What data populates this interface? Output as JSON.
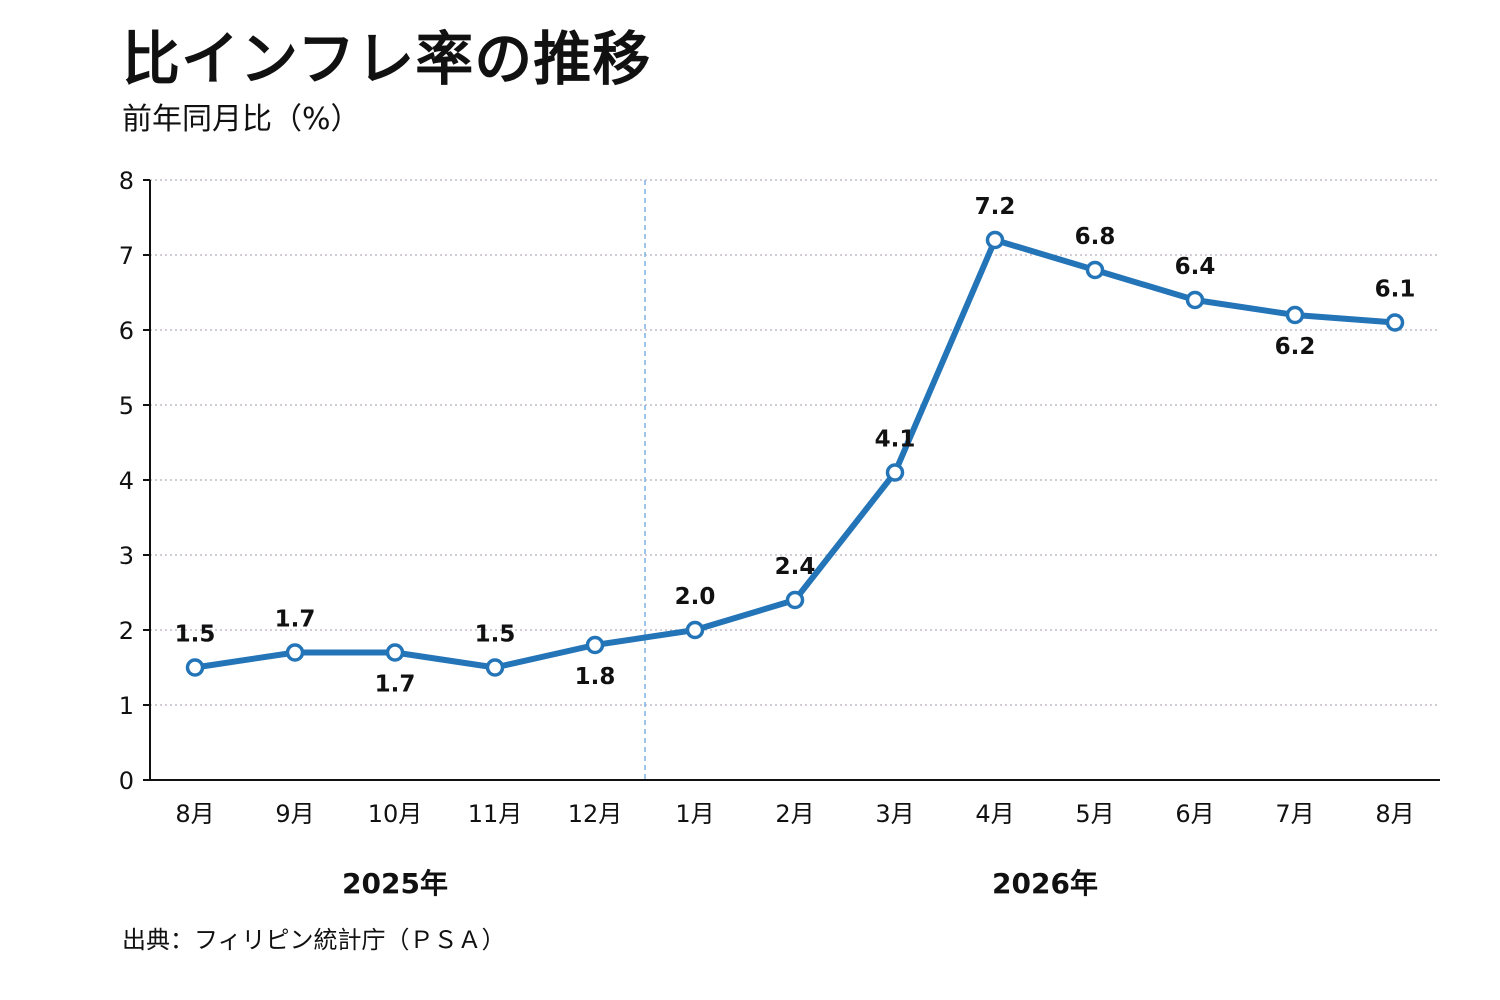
{
  "chart_data": {
    "type": "line",
    "title": "比インフレ率の推移",
    "subtitle": "前年同月比（%）",
    "source": "出典：フィリピン統計庁（ＰＳＡ）",
    "categories": [
      "8月",
      "9月",
      "10月",
      "11月",
      "12月",
      "1月",
      "2月",
      "3月",
      "4月",
      "5月",
      "6月",
      "7月",
      "8月"
    ],
    "series": [
      {
        "values": [
          1.5,
          1.7,
          1.7,
          1.5,
          1.8,
          2.0,
          2.4,
          4.1,
          7.2,
          6.8,
          6.4,
          6.2,
          6.1
        ],
        "data_labels": [
          "1.5",
          "1.7",
          "1.7",
          "1.5",
          "1.8",
          "2.0",
          "2.4",
          "4.1",
          "7.2",
          "6.8",
          "6.4",
          "6.2",
          "6.1"
        ],
        "label_positions": [
          "above",
          "above",
          "below",
          "above",
          "below",
          "above",
          "above",
          "above",
          "above",
          "above",
          "above",
          "below",
          "above"
        ],
        "color": "#2474b8"
      }
    ],
    "year_groups": [
      {
        "label": "2025年",
        "categories": [
          "8月",
          "9月",
          "10月",
          "11月",
          "12月"
        ]
      },
      {
        "label": "2026年",
        "categories": [
          "1月",
          "2月",
          "3月",
          "4月",
          "5月",
          "6月",
          "7月",
          "8月"
        ]
      }
    ],
    "year_divider_color": "#7fb2e0",
    "ylim": [
      0,
      8
    ],
    "yticks": [
      "0",
      "1",
      "2",
      "3",
      "4",
      "5",
      "6",
      "7",
      "8"
    ],
    "grid": true,
    "grid_color": "#b9aebf",
    "legend": false
  }
}
